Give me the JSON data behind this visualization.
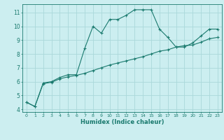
{
  "title": "",
  "xlabel": "Humidex (Indice chaleur)",
  "ylabel": "",
  "background_color": "#cceef0",
  "grid_color": "#aad8da",
  "line_color": "#1a7a6e",
  "xlim": [
    -0.5,
    23.5
  ],
  "ylim": [
    3.8,
    11.6
  ],
  "xticks": [
    0,
    1,
    2,
    3,
    4,
    5,
    6,
    7,
    8,
    9,
    10,
    11,
    12,
    13,
    14,
    15,
    16,
    17,
    18,
    19,
    20,
    21,
    22,
    23
  ],
  "yticks": [
    4,
    5,
    6,
    7,
    8,
    9,
    10,
    11
  ],
  "curve1_x": [
    0,
    1,
    2,
    3,
    4,
    5,
    6,
    7,
    8,
    9,
    10,
    11,
    12,
    13,
    14,
    15,
    16,
    17,
    18,
    19,
    20,
    21,
    22,
    23
  ],
  "curve1_y": [
    4.5,
    4.2,
    5.9,
    6.0,
    6.3,
    6.5,
    6.5,
    8.4,
    10.0,
    9.5,
    10.5,
    10.5,
    10.8,
    11.2,
    11.2,
    11.2,
    9.8,
    9.2,
    8.5,
    8.5,
    8.8,
    9.3,
    9.8,
    9.8
  ],
  "curve2_x": [
    0,
    1,
    2,
    3,
    4,
    5,
    6,
    7,
    8,
    9,
    10,
    11,
    12,
    13,
    14,
    15,
    16,
    17,
    18,
    19,
    20,
    21,
    22,
    23
  ],
  "curve2_y": [
    4.5,
    4.2,
    5.85,
    5.95,
    6.2,
    6.35,
    6.45,
    6.6,
    6.8,
    7.0,
    7.2,
    7.35,
    7.5,
    7.65,
    7.8,
    8.0,
    8.2,
    8.3,
    8.5,
    8.6,
    8.65,
    8.85,
    9.1,
    9.2
  ]
}
